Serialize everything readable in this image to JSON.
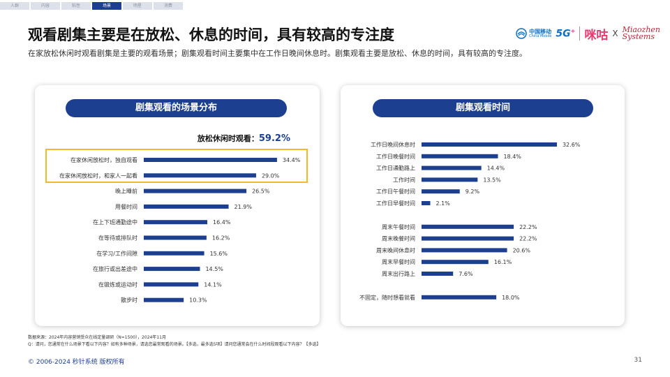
{
  "nav": {
    "tabs": [
      {
        "label": "人群",
        "active": false
      },
      {
        "label": "内容",
        "active": false
      },
      {
        "label": "粘性",
        "active": false
      },
      {
        "label": "场景",
        "active": true
      },
      {
        "label": "明星",
        "active": false
      },
      {
        "label": "消费",
        "active": false
      }
    ]
  },
  "header": {
    "title": "观看剧集主要是在放松、休息的时间，具有较高的专注度",
    "subtitle": "在家放松休闲时观看剧集是主要的观看场景；剧集观看时间主要集中在工作日晚间休息时。剧集观看主要是放松、休息的时间，具有较高的专注度。"
  },
  "logos": {
    "china_mobile_cn": "中国移动",
    "china_mobile_en": "China Mobile",
    "five_g": "5G",
    "five_g_plus": "+",
    "migu": "咪咕",
    "times": "X",
    "miaozhen_line1": "Miaozhen",
    "miaozhen_line2": "Systems"
  },
  "chart_left": {
    "title": "剧集观看的场景分布",
    "highlight_label": "放松休闲时观看：",
    "highlight_value": "59.2%",
    "highlighted_count": 2
  },
  "chart_right": {
    "title": "剧集观看时间"
  },
  "chart_data": [
    {
      "type": "bar",
      "orientation": "horizontal",
      "title": "剧集观看的场景分布",
      "categories": [
        "在家休闲放松时，独自观看",
        "在家休闲放松时，和家人一起看",
        "晚上睡前",
        "用餐时间",
        "在上下班通勤途中",
        "在等待或排队时",
        "在学习/工作间隙",
        "在旅行或出差途中",
        "在锻炼或运动时",
        "散步时"
      ],
      "values": [
        34.4,
        29.0,
        26.5,
        21.9,
        16.4,
        16.2,
        15.6,
        14.5,
        14.1,
        10.3
      ],
      "value_suffix": "%",
      "color": "#1d3f8f"
    },
    {
      "type": "bar",
      "orientation": "horizontal",
      "title": "剧集观看时间",
      "groups": [
        {
          "categories": [
            "工作日晚间休息时",
            "工作日晚餐时间",
            "工作日通勤路上",
            "工作时间",
            "工作日午餐时间",
            "工作日早餐时间"
          ],
          "values": [
            32.6,
            18.4,
            14.4,
            13.5,
            9.2,
            2.1
          ]
        },
        {
          "categories": [
            "周末午餐时间",
            "周末晚餐时间",
            "周末晚间休息时",
            "周末早餐时间",
            "周末出行路上"
          ],
          "values": [
            22.2,
            22.2,
            20.6,
            16.1,
            7.6
          ]
        },
        {
          "categories": [
            "不固定，随时想看就看"
          ],
          "values": [
            18.0
          ]
        }
      ],
      "value_suffix": "%",
      "color": "#1d3f8f"
    }
  ],
  "footer": {
    "source": "数据来源：2024年内容营销受众在线定量调研（N=1500），2024年11月",
    "question": "Q：请问，您通常在什么场景下看以下内容？如有多种场景，请选您最常观看的场景。【多选，最多选5项】请问您通常会在什么时间段观看以下内容？【多选】",
    "copyright": "© 2006-2024 秒针系统 版权所有",
    "page_number": "31"
  }
}
